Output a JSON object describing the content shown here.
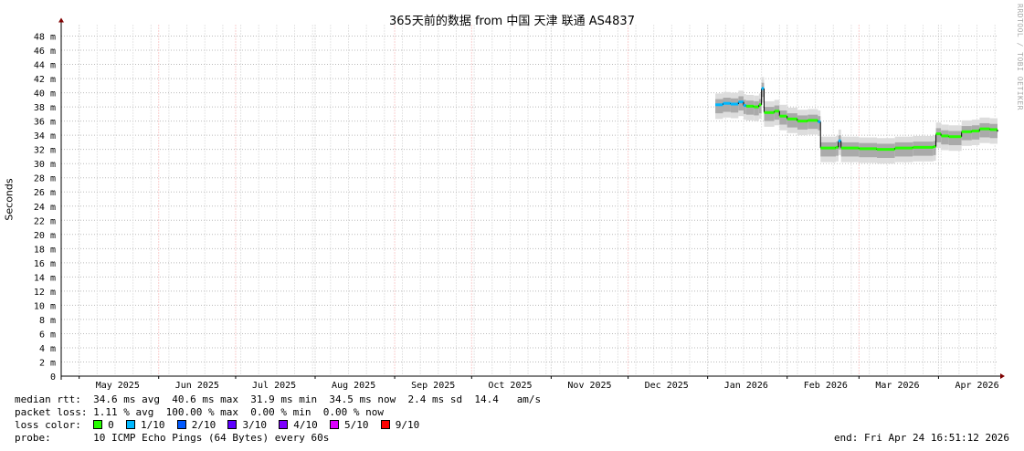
{
  "chart_data": {
    "type": "line",
    "title": "365天前的数据 from 中国 天津 联通 AS4837",
    "ylabel": "Seconds",
    "ylim": [
      0,
      48
    ],
    "yticks": [
      "0",
      "2 m",
      "4 m",
      "6 m",
      "8 m",
      "10 m",
      "12 m",
      "14 m",
      "16 m",
      "18 m",
      "20 m",
      "22 m",
      "24 m",
      "26 m",
      "28 m",
      "30 m",
      "32 m",
      "34 m",
      "36 m",
      "38 m",
      "40 m",
      "42 m",
      "44 m",
      "46 m",
      "48 m"
    ],
    "xlim": [
      "2025-04-24",
      "2026-04-24"
    ],
    "xticks": [
      {
        "label": "May 2025",
        "date": "2025-05-16"
      },
      {
        "label": "Jun 2025",
        "date": "2025-06-16"
      },
      {
        "label": "Jul 2025",
        "date": "2025-07-16"
      },
      {
        "label": "Aug 2025",
        "date": "2025-08-16"
      },
      {
        "label": "Sep 2025",
        "date": "2025-09-16"
      },
      {
        "label": "Oct 2025",
        "date": "2025-10-16"
      },
      {
        "label": "Nov 2025",
        "date": "2025-11-16"
      },
      {
        "label": "Dec 2025",
        "date": "2025-12-16"
      },
      {
        "label": "Jan 2026",
        "date": "2026-01-16"
      },
      {
        "label": "Feb 2026",
        "date": "2026-02-16"
      },
      {
        "label": "Mar 2026",
        "date": "2026-03-16"
      },
      {
        "label": "Apr 2026",
        "date": "2026-04-16"
      }
    ],
    "grid": true,
    "series": [
      {
        "name": "median rtt",
        "unit": "ms",
        "points": [
          [
            "2026-01-04",
            38.3,
            1
          ],
          [
            "2026-01-07",
            38.5,
            1
          ],
          [
            "2026-01-10",
            38.4,
            1
          ],
          [
            "2026-01-13",
            38.7,
            1
          ],
          [
            "2026-01-15",
            38.2,
            1
          ],
          [
            "2026-01-16",
            38.1,
            0
          ],
          [
            "2026-01-19",
            38.0,
            0
          ],
          [
            "2026-01-21",
            38.3,
            0
          ],
          [
            "2026-01-22",
            40.6,
            1
          ],
          [
            "2026-01-23",
            37.2,
            0
          ],
          [
            "2026-01-27",
            37.4,
            0
          ],
          [
            "2026-01-29",
            36.7,
            0
          ],
          [
            "2026-02-01",
            36.3,
            0
          ],
          [
            "2026-02-05",
            36.0,
            0
          ],
          [
            "2026-02-09",
            36.1,
            0
          ],
          [
            "2026-02-13",
            35.9,
            1
          ],
          [
            "2026-02-14",
            32.2,
            0
          ],
          [
            "2026-02-20",
            32.3,
            0
          ],
          [
            "2026-02-21",
            33.2,
            1
          ],
          [
            "2026-02-22",
            32.2,
            0
          ],
          [
            "2026-03-01",
            32.1,
            0
          ],
          [
            "2026-03-08",
            32.0,
            0
          ],
          [
            "2026-03-15",
            32.2,
            0
          ],
          [
            "2026-03-22",
            32.3,
            0
          ],
          [
            "2026-03-30",
            32.4,
            0
          ],
          [
            "2026-03-31",
            34.2,
            0
          ],
          [
            "2026-04-02",
            33.9,
            0
          ],
          [
            "2026-04-05",
            33.8,
            0
          ],
          [
            "2026-04-10",
            34.5,
            0
          ],
          [
            "2026-04-14",
            34.6,
            0
          ],
          [
            "2026-04-17",
            34.9,
            0
          ],
          [
            "2026-04-21",
            34.8,
            0
          ],
          [
            "2026-04-24",
            34.5,
            0
          ]
        ]
      }
    ]
  },
  "colors": {
    "loss": [
      "#26ff00",
      "#00b8ff",
      "#0059ff",
      "#5e00ff",
      "#7e00ff",
      "#dd00ff",
      "#ff0000"
    ]
  },
  "legend": {
    "rtt_label": "median rtt:",
    "rtt": "34.6 ms avg  40.6 ms max  31.9 ms min  34.5 ms now  2.4 ms sd  14.4   am/s",
    "loss_label": "packet loss:",
    "loss": "1.11 % avg  100.00 % max  0.00 % min  0.00 % now",
    "color_label": "loss color:",
    "colors": [
      "0",
      "1/10",
      "2/10",
      "3/10",
      "4/10",
      "5/10",
      "9/10"
    ],
    "probe_label": "probe:",
    "probe": "10 ICMP Echo Pings (64 Bytes) every 60s",
    "end": "end: Fri Apr 24 16:51:12 2026"
  },
  "watermark": "RRDTOOL / TOBI OETIKER"
}
